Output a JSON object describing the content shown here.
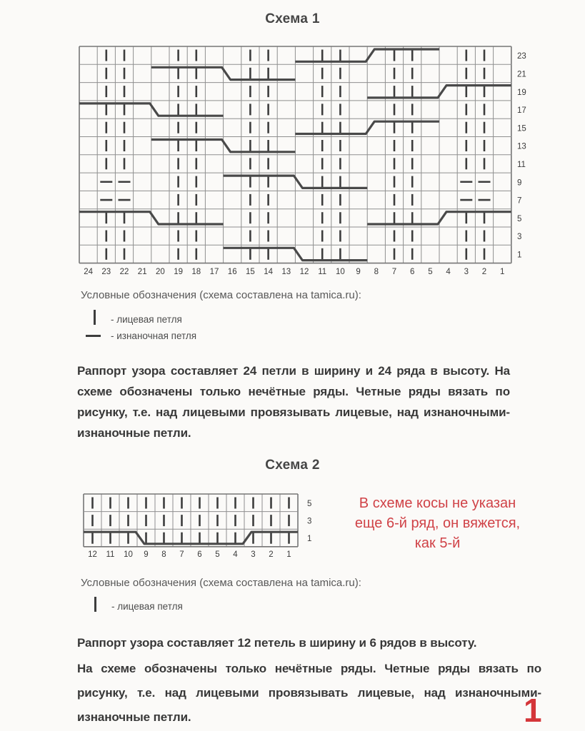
{
  "titles": {
    "schema1": "Схема 1",
    "schema2": "Схема 2"
  },
  "page_number": "1",
  "colors": {
    "ink": "#3d3d3d",
    "grid": "#8f8f8f",
    "grid_border": "#767676",
    "cable": "#494949",
    "label": "#3a3a3a",
    "note_red": "#d04247",
    "page_red": "#d43539"
  },
  "chart1": {
    "row_labels": [
      23,
      21,
      19,
      17,
      15,
      13,
      11,
      9,
      7,
      5,
      3,
      1
    ],
    "col_labels": [
      24,
      23,
      22,
      21,
      20,
      19,
      18,
      17,
      16,
      15,
      14,
      13,
      12,
      11,
      10,
      9,
      8,
      7,
      6,
      5,
      4,
      3,
      2,
      1
    ],
    "knit_stitches": [
      23,
      22,
      19,
      18,
      15,
      14,
      11,
      10,
      7,
      6,
      3,
      2
    ],
    "purl_overrides": {
      "9": [
        23,
        22,
        3,
        2
      ],
      "7": [
        23,
        22,
        3,
        2
      ]
    },
    "cables": [
      {
        "row": 23,
        "from": 12,
        "to": 5,
        "dir": "rise"
      },
      {
        "row": 21,
        "from": 20,
        "to": 13,
        "dir": "fall"
      },
      {
        "row": 19,
        "from": 8,
        "to": 1,
        "dir": "rise"
      },
      {
        "row": 17,
        "from": 24,
        "to": 17,
        "dir": "fall"
      },
      {
        "row": 15,
        "from": 12,
        "to": 5,
        "dir": "rise"
      },
      {
        "row": 13,
        "from": 20,
        "to": 13,
        "dir": "fall"
      },
      {
        "row": 9,
        "from": 16,
        "to": 9,
        "dir": "fall"
      },
      {
        "row": 5,
        "from": 24,
        "to": 17,
        "dir": "fall"
      },
      {
        "row": 5,
        "from": 8,
        "to": 1,
        "dir": "rise"
      },
      {
        "row": 1,
        "from": 16,
        "to": 9,
        "dir": "fall"
      }
    ]
  },
  "chart2": {
    "row_labels": [
      5,
      3,
      1
    ],
    "col_labels": [
      12,
      11,
      10,
      9,
      8,
      7,
      6,
      5,
      4,
      3,
      2,
      1
    ],
    "knit_stitches": [
      12,
      11,
      10,
      9,
      8,
      7,
      6,
      5,
      4,
      3,
      2,
      1
    ],
    "purl_overrides": {},
    "cables": [
      {
        "row": 1,
        "from": 12,
        "to": 7,
        "dir": "fall"
      },
      {
        "row": 1,
        "from": 6,
        "to": 1,
        "dir": "rise"
      }
    ]
  },
  "legend1": {
    "title": "Условные обозначения (схема составлена на tamica.ru):",
    "items": [
      {
        "symbol": "knit-bar",
        "label": "- лицевая петля"
      },
      {
        "symbol": "purl-dash",
        "label": "- изнаночная петля"
      }
    ]
  },
  "legend2": {
    "title": "Условные обозначения (схема составлена на tamica.ru):",
    "items": [
      {
        "symbol": "knit-bar",
        "label": "- лицевая петля"
      }
    ]
  },
  "paragraphs": {
    "schema1": "Раппорт узора составляет 24 петли в ширину и 24 ряда в высоту. На схеме обозначены только нечётные ряды. Четные ряды вязать по рисунку, т.е. над лицевыми провязывать лицевые, над изнаночными- изнаночные петли.",
    "schema2_line1": "Раппорт узора составляет 12 петель в ширину и 6 рядов в высоту.",
    "schema2_body": "На схеме обозначены только нечётные ряды. Четные ряды вязать по рисунку, т.е. над лицевыми провязывать лицевые, над изнаночными- изнаночные петли."
  },
  "note": {
    "lines": [
      "В схеме косы не указан",
      "еще 6-й ряд, он вяжется,",
      "как 5-й"
    ]
  }
}
